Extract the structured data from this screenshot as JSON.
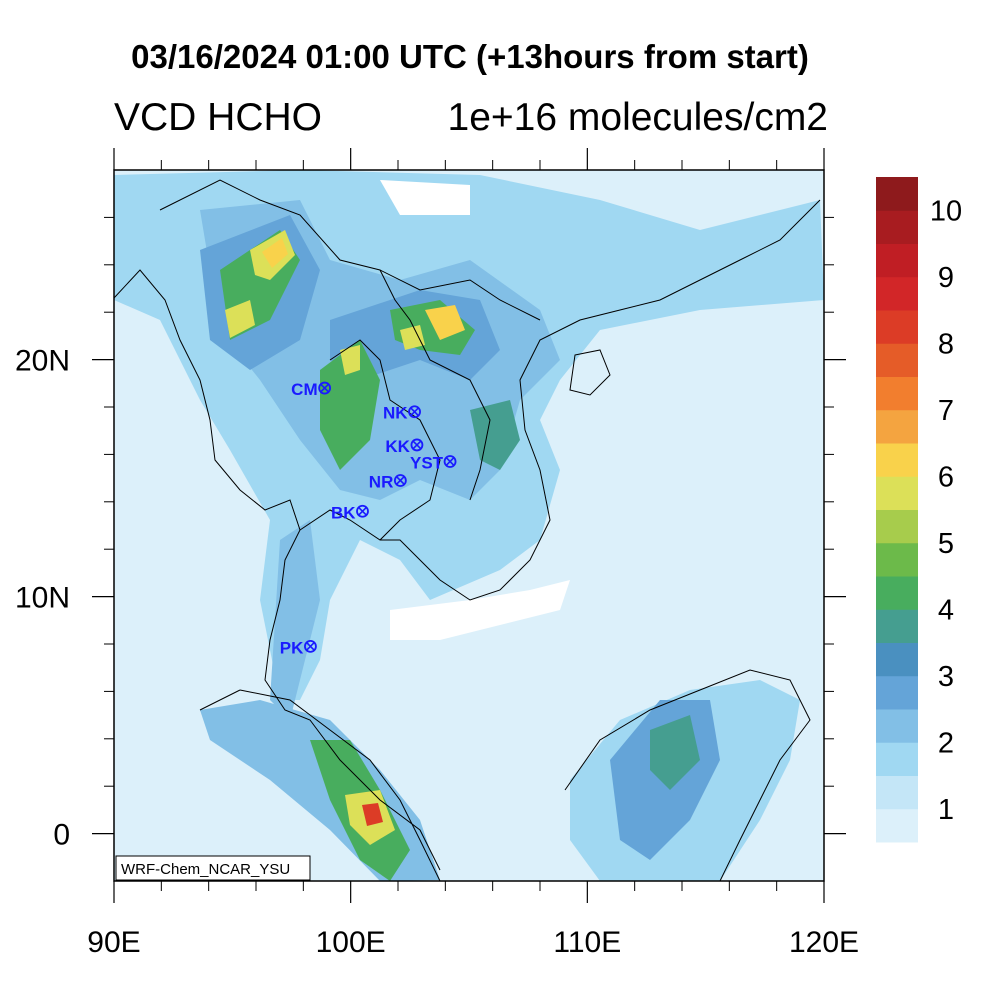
{
  "title": "03/16/2024 01:00 UTC (+13hours from start)",
  "variable": "VCD HCHO",
  "units": "1e+16 molecules/cm2",
  "model_label": "WRF-Chem_NCAR_YSU",
  "map": {
    "lon_range": [
      90,
      120
    ],
    "lat_range": [
      -2,
      28
    ],
    "x_ticks": [
      {
        "value": 90,
        "label": "90E"
      },
      {
        "value": 100,
        "label": "100E"
      },
      {
        "value": 110,
        "label": "110E"
      },
      {
        "value": 120,
        "label": "120E"
      }
    ],
    "y_ticks": [
      {
        "value": 0,
        "label": "0"
      },
      {
        "value": 10,
        "label": "10N"
      },
      {
        "value": 20,
        "label": "20N"
      }
    ],
    "minor_x_ticks": [
      92,
      94,
      96,
      98,
      102,
      104,
      106,
      108,
      112,
      114,
      116,
      118
    ],
    "minor_y_ticks": [
      2,
      4,
      6,
      8,
      12,
      14,
      16,
      18,
      22,
      24,
      26
    ]
  },
  "stations": [
    {
      "code": "CM",
      "lon": 98.9,
      "lat": 18.8
    },
    {
      "code": "NK",
      "lon": 102.7,
      "lat": 17.8
    },
    {
      "code": "KK",
      "lon": 102.8,
      "lat": 16.4
    },
    {
      "code": "YST",
      "lon": 104.2,
      "lat": 15.7
    },
    {
      "code": "NR",
      "lon": 102.1,
      "lat": 14.9
    },
    {
      "code": "BK",
      "lon": 100.5,
      "lat": 13.6
    },
    {
      "code": "PK",
      "lon": 98.3,
      "lat": 7.9
    }
  ],
  "colorbar": {
    "labels": [
      "1",
      "2",
      "3",
      "4",
      "5",
      "6",
      "7",
      "8",
      "9",
      "10"
    ],
    "colors": [
      "#dcf0fa",
      "#c4e6f7",
      "#a0d8f2",
      "#82bfe6",
      "#64a4d8",
      "#4a90c0",
      "#459e90",
      "#48ad5e",
      "#6cba4a",
      "#a7cc4c",
      "#dce058",
      "#f9d24b",
      "#f4a440",
      "#f27e2e",
      "#e55c28",
      "#dc3c26",
      "#d22628",
      "#c01e24",
      "#a81c20",
      "#8e1a1c"
    ]
  }
}
